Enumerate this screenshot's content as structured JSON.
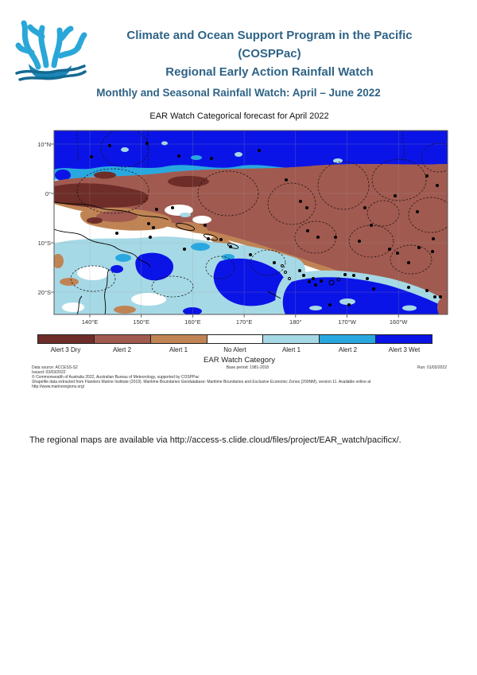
{
  "page": {
    "header": {
      "title_lines": [
        "Climate and Ocean Support Program in the Pacific",
        "(COSPPac)",
        "Regional Early Action Rainfall Watch"
      ],
      "subtitle": "Monthly and Seasonal Rainfall Watch: April – June 2022",
      "title_color": "#2f6386",
      "logo": {
        "name": "cosppac-coral-logo",
        "colors": {
          "branch": "#2aa7d8",
          "base": "#1b86b8",
          "wave": "#156a92"
        }
      }
    },
    "figure": {
      "title": "EAR Watch Categorical forecast for April 2022",
      "map": {
        "x_ticks": [
          "140°E",
          "150°E",
          "160°E",
          "170°E",
          "180°",
          "170°W",
          "160°W"
        ],
        "y_ticks": [
          "10°N",
          "0°",
          "10°S",
          "20°S"
        ],
        "dots": [
          [
            78,
            39
          ],
          [
            101,
            25
          ],
          [
            148,
            22
          ],
          [
            188,
            38
          ],
          [
            229,
            41
          ],
          [
            289,
            31
          ],
          [
            323,
            68
          ],
          [
            341,
            95
          ],
          [
            349,
            103
          ],
          [
            422,
            103
          ],
          [
            500,
            63
          ],
          [
            513,
            75
          ],
          [
            460,
            88
          ],
          [
            488,
            108
          ],
          [
            110,
            135
          ],
          [
            152,
            140
          ],
          [
            160,
            105
          ],
          [
            180,
            103
          ],
          [
            150,
            123
          ],
          [
            156,
            128
          ],
          [
            221,
            125
          ],
          [
            225,
            142
          ],
          [
            241,
            143
          ],
          [
            253,
            152
          ],
          [
            195,
            155
          ],
          [
            278,
            162
          ],
          [
            308,
            172
          ],
          [
            350,
            132
          ],
          [
            363,
            140
          ],
          [
            508,
            142
          ],
          [
            453,
            155
          ],
          [
            463,
            160
          ],
          [
            477,
            172
          ],
          [
            490,
            153
          ],
          [
            507,
            158
          ],
          [
            430,
            125
          ],
          [
            415,
            145
          ],
          [
            385,
            140
          ],
          [
            340,
            182
          ],
          [
            345,
            188
          ],
          [
            352,
            196
          ],
          [
            360,
            200
          ],
          [
            357,
            192
          ],
          [
            367,
            195
          ],
          [
            397,
            187
          ],
          [
            408,
            188
          ],
          [
            425,
            192
          ],
          [
            433,
            205
          ],
          [
            477,
            203
          ],
          [
            500,
            207
          ],
          [
            510,
            215
          ],
          [
            517,
            215
          ],
          [
            378,
            225
          ],
          [
            402,
            225
          ]
        ]
      },
      "legend": {
        "title": "EAR Watch Category",
        "categories": [
          {
            "label": "Alert 3 Dry",
            "color": "#6e2d28"
          },
          {
            "label": "Alert 2",
            "color": "#a15a50"
          },
          {
            "label": "Alert 1",
            "color": "#c08454"
          },
          {
            "label": "No Alert",
            "color": "#ffffff"
          },
          {
            "label": "Alert 1",
            "color": "#a6d9e6"
          },
          {
            "label": "Alert 2",
            "color": "#29a8e0"
          },
          {
            "label": "Alert 3 Wet",
            "color": "#0b14e6"
          }
        ]
      },
      "fineprint": {
        "data_source": "Data source: ACCESS-S2",
        "issued": "Issued: 03/03/2022",
        "base_period": "Base period: 1981-2018",
        "run": "Run: 01/03/2022",
        "copyright": "© Commonwealth of Australia 2022, Australian Bureau of Meteorology, supported by COSPPac",
        "shapefile": "Shapefile data extracted from Flanders Marine Institute (2019). Maritime Boundaries Geodatabase: Maritime Boundaries and Exclusive Economic Zones (200NM), version 11. Available online at",
        "shapefile_url": "http://www.marineregions.org/"
      }
    },
    "footer_note": "The regional maps are available via http://access-s.clide.cloud/files/project/EAR_watch/pacificx/."
  }
}
